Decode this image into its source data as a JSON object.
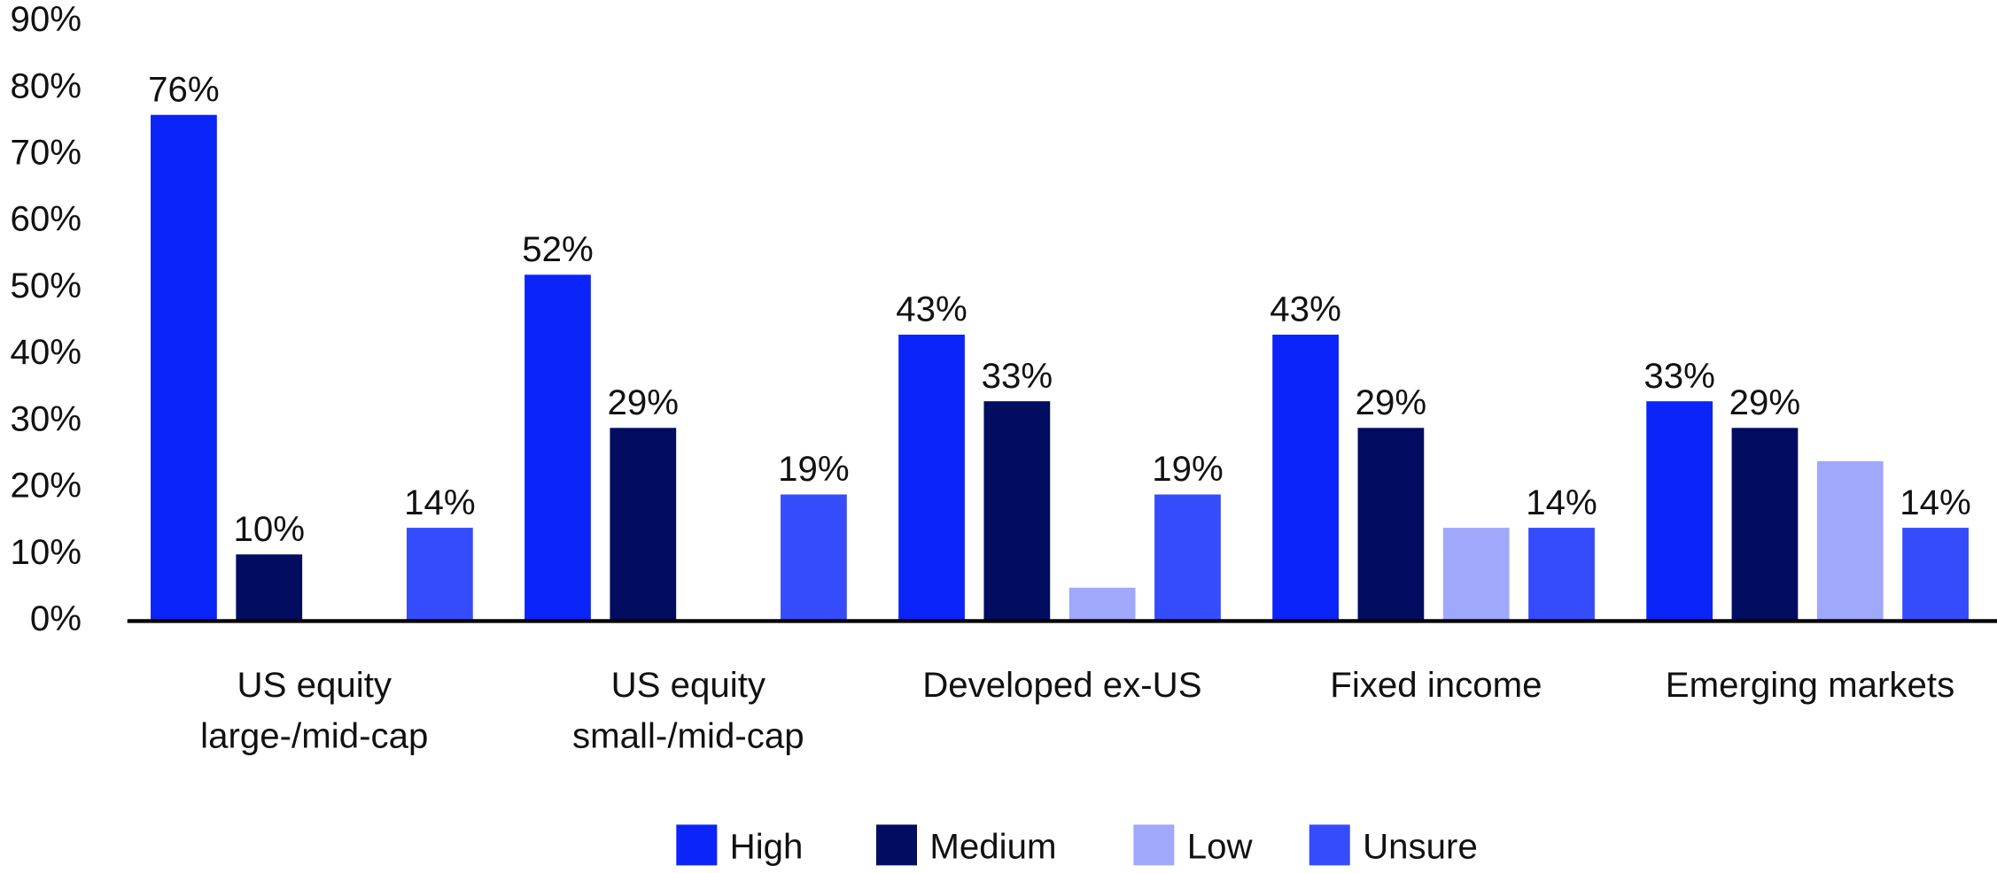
{
  "chart_data": {
    "type": "bar",
    "categories": [
      "US equity\nlarge-/mid-cap",
      "US equity\nsmall-/mid-cap",
      "Developed ex-US",
      "Fixed income",
      "Emerging markets"
    ],
    "series": [
      {
        "name": "High",
        "color": "#0a24fa",
        "values": [
          76,
          52,
          43,
          43,
          33
        ],
        "value_labels": [
          "76%",
          "52%",
          "43%",
          "43%",
          "33%"
        ]
      },
      {
        "name": "Medium",
        "color": "#020c60",
        "values": [
          10,
          29,
          33,
          29,
          29
        ],
        "value_labels": [
          "10%",
          "29%",
          "33%",
          "29%",
          "29%"
        ]
      },
      {
        "name": "Low",
        "color": "#a0a8fc",
        "values": [
          null,
          null,
          5,
          14,
          24
        ]
      },
      {
        "name": "Unsure",
        "color": "#344cfc",
        "values": [
          14,
          19,
          19,
          14,
          14
        ],
        "value_labels": [
          "14%",
          "19%",
          "19%",
          "14%",
          "14%"
        ]
      }
    ],
    "ylim": [
      0,
      90
    ],
    "yticks": [
      {
        "value": 0,
        "label": "0%"
      },
      {
        "value": 10,
        "label": "10%"
      },
      {
        "value": 20,
        "label": "20%"
      },
      {
        "value": 30,
        "label": "30%"
      },
      {
        "value": 40,
        "label": "40%"
      },
      {
        "value": 50,
        "label": "50%"
      },
      {
        "value": 60,
        "label": "60%"
      },
      {
        "value": 70,
        "label": "70%"
      },
      {
        "value": 80,
        "label": "80%"
      },
      {
        "value": 90,
        "label": "90%"
      }
    ],
    "grid": false,
    "legend": "bottom"
  }
}
